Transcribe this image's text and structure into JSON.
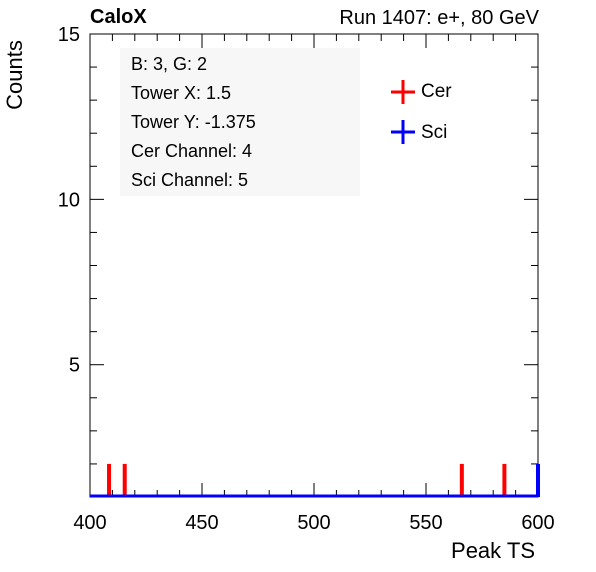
{
  "chart_data": {
    "type": "bar",
    "title_left": "CaloX",
    "title_right": "Run 1407: e+, 80 GeV",
    "xlabel": "Peak TS",
    "ylabel": "Counts",
    "xlim": [
      400,
      600
    ],
    "ylim": [
      1,
      15
    ],
    "x_ticks": [
      400,
      450,
      500,
      550,
      600
    ],
    "y_ticks": [
      5,
      10,
      15
    ],
    "info": [
      "B: 3, G: 2",
      "Tower X: 1.5",
      "Tower Y: -1.375",
      "Cer Channel: 4",
      "Sci Channel: 5"
    ],
    "legend_position": "top-right",
    "series": [
      {
        "name": "Cer",
        "color": "#ff0000",
        "points": [
          {
            "x": 408.5,
            "y": 2
          },
          {
            "x": 415.5,
            "y": 2
          },
          {
            "x": 566,
            "y": 2
          },
          {
            "x": 585,
            "y": 2
          }
        ]
      },
      {
        "name": "Sci",
        "color": "#0000ff",
        "points": [
          {
            "x": 600,
            "y": 2
          }
        ]
      }
    ]
  }
}
